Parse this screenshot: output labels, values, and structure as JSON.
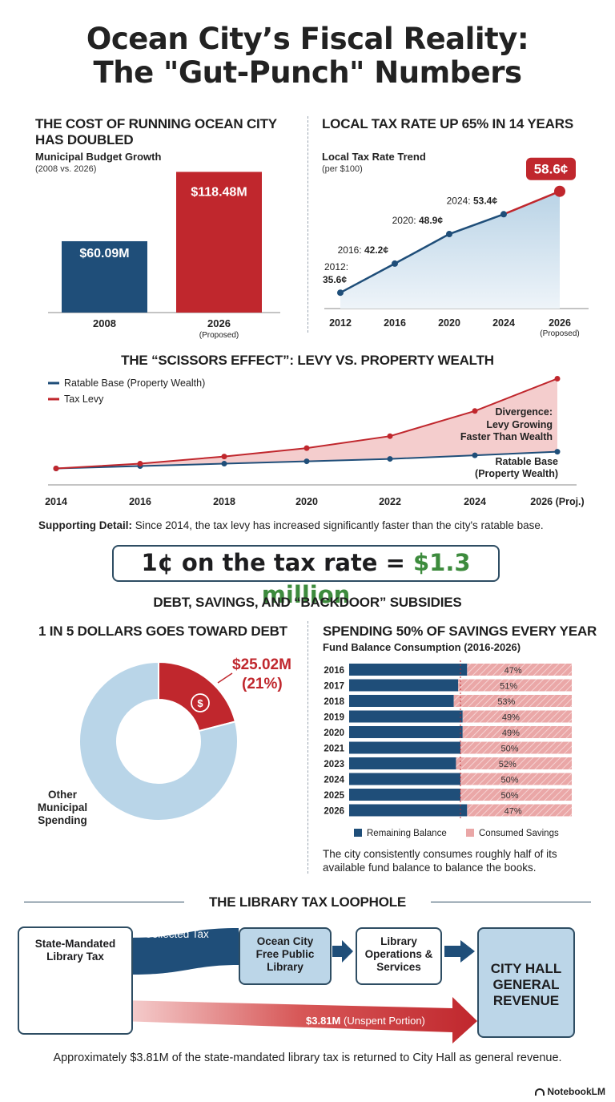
{
  "page": {
    "title_line1": "Ocean City’s Fiscal Reality:",
    "title_line2": "The \"Gut-Punch\" Numbers",
    "brand": "NotebookLM"
  },
  "budget": {
    "heading": "THE COST OF RUNNING OCEAN CITY HAS DOUBLED",
    "subtitle": "Municipal Budget Growth",
    "subtitle_note": "(2008 vs. 2026)"
  },
  "taxrate": {
    "heading": "LOCAL TAX RATE UP 65% IN 14 YEARS",
    "subtitle": "Local Tax Rate Trend",
    "subtitle_note": "(per $100)",
    "highlight": "58.6¢"
  },
  "scissors": {
    "heading": "THE “SCISSORS EFFECT”: LEVY VS. PROPERTY WEALTH",
    "supporting_label": "Supporting Detail:",
    "supporting_text": " Since 2014, the tax levy has increased significantly faster than the city's ratable base."
  },
  "callout": {
    "left": "1¢ on the tax rate = ",
    "right": "$1.3 million"
  },
  "debt_section": {
    "heading": "DEBT, SAVINGS, AND “BACKDOOR” SUBSIDIES",
    "debt_heading": "1 IN 5 DOLLARS GOES TOWARD DEBT",
    "savings_heading": "SPENDING 50% OF SAVINGS EVERY YEAR",
    "savings_subtitle": "Fund Balance Consumption (2016-2026)",
    "savings_note": "The city consistently consumes roughly half of its available fund balance to balance the books."
  },
  "library": {
    "heading": "THE LIBRARY TAX LOOPHOLE",
    "box1": "State-Mandated Library Tax",
    "flow_label": "Collected Tax",
    "box2": "Ocean City Free Public Library",
    "box3": "Library Operations & Services",
    "box4": "CITY HALL GENERAL REVENUE",
    "arrow_amount": "$3.81M",
    "arrow_note": "(Unspent Portion)",
    "footnote": "Approximately $3.81M of the state-mandated library tax is returned to City Hall as general revenue."
  },
  "colors": {
    "navy": "#1f4e79",
    "red": "#c0272d",
    "lightblue": "#b9d5e8",
    "pink": "#e8a3a3",
    "green": "#3d8b3d"
  },
  "chart_data": [
    {
      "type": "bar",
      "title": "Municipal Budget Growth",
      "categories": [
        "2008",
        "2026"
      ],
      "category_notes": [
        "",
        "(Proposed)"
      ],
      "values": [
        60.09,
        118.48
      ],
      "labels": [
        "$60.09M",
        "$118.48M"
      ],
      "ylabel": "Budget ($M)",
      "ylim": [
        0,
        130
      ]
    },
    {
      "type": "line",
      "title": "Local Tax Rate Trend",
      "x": [
        "2012",
        "2016",
        "2020",
        "2024",
        "2026"
      ],
      "x_notes": [
        "",
        "",
        "",
        "",
        "(Proposed)"
      ],
      "values": [
        35.6,
        42.2,
        48.9,
        53.4,
        58.6
      ],
      "point_prefixes": [
        "2012:",
        "2016:",
        "2020:",
        "2024:",
        ""
      ],
      "point_labels": [
        "35.6¢",
        "42.2¢",
        "48.9¢",
        "53.4¢",
        "58.6¢"
      ],
      "ylabel": "Cents per $100",
      "ylim": [
        32,
        62
      ]
    },
    {
      "type": "line",
      "title": "Levy vs. Property Wealth",
      "x": [
        "2014",
        "2016",
        "2018",
        "2020",
        "2022",
        "2024",
        "2026 (Proj.)"
      ],
      "series": [
        {
          "name": "Ratable Base (Property Wealth)",
          "values": [
            100,
            102,
            104,
            106,
            108,
            111,
            114
          ]
        },
        {
          "name": "Tax Levy",
          "values": [
            100,
            104,
            110,
            117,
            127,
            148,
            175
          ]
        }
      ],
      "ylim": [
        95,
        180
      ],
      "annotations": [
        "Divergence:",
        "Levy Growing",
        "Faster Than Wealth",
        "Ratable Base",
        "(Property Wealth)"
      ]
    },
    {
      "type": "pie",
      "title": "1 in 5 Dollars Goes Toward Debt",
      "slices": [
        {
          "label": "Debt Service",
          "value": 21,
          "amount": "$25.02M",
          "pct_label": "(21%)"
        },
        {
          "label": "Other Municipal Spending",
          "value": 79
        }
      ]
    },
    {
      "type": "bar",
      "title": "Fund Balance Consumption (2016-2026)",
      "categories": [
        "2016",
        "2017",
        "2018",
        "2019",
        "2020",
        "2021",
        "2023",
        "2024",
        "2025",
        "2026"
      ],
      "series": [
        {
          "name": "Remaining Balance",
          "values": [
            53,
            49,
            47,
            51,
            51,
            50,
            48,
            50,
            50,
            53
          ]
        },
        {
          "name": "Consumed Savings",
          "values": [
            47,
            51,
            53,
            49,
            49,
            50,
            52,
            50,
            50,
            47
          ]
        }
      ],
      "consumed_labels": [
        "47%",
        "51%",
        "53%",
        "49%",
        "49%",
        "50%",
        "52%",
        "50%",
        "50%",
        "47%"
      ],
      "xlim": [
        0,
        100
      ]
    }
  ]
}
